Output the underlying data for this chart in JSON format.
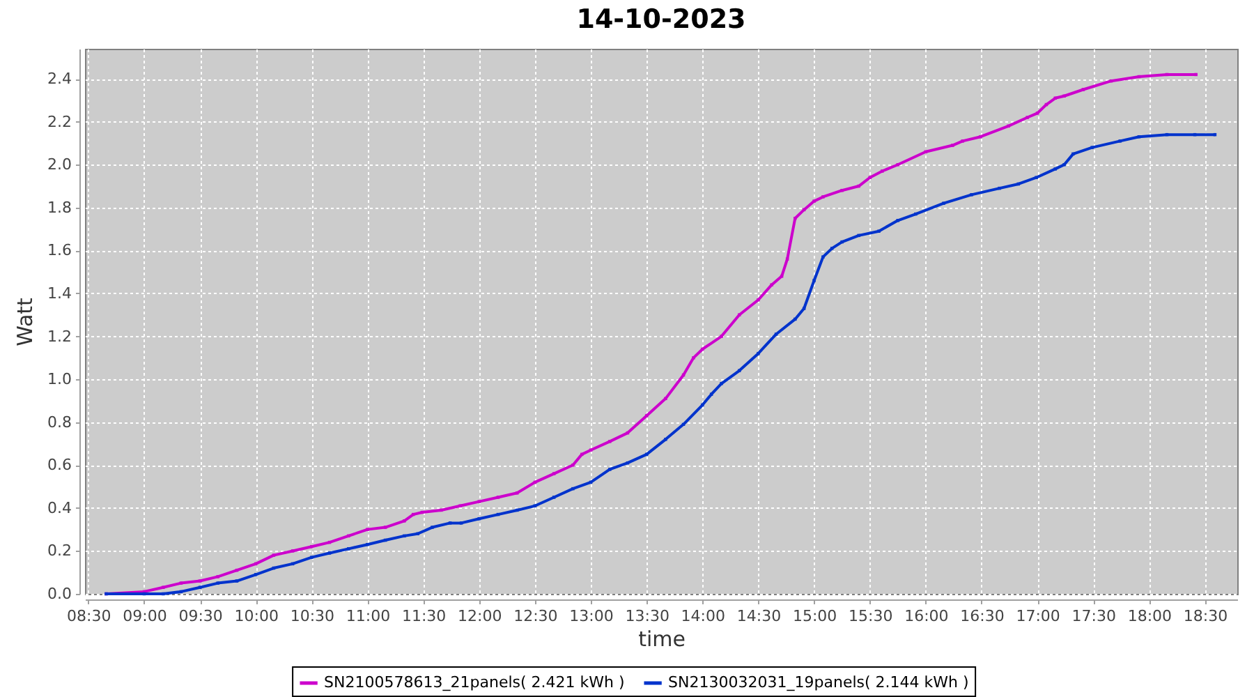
{
  "chart_data": {
    "type": "line",
    "title": "14-10-2023",
    "xlabel": "time",
    "ylabel": "Watt",
    "xlim": [
      8.47,
      18.79
    ],
    "ylim": [
      0,
      2.54
    ],
    "xticks": [
      {
        "value": 8.5,
        "label": "08:30"
      },
      {
        "value": 9,
        "label": "09:00"
      },
      {
        "value": 9.5,
        "label": "09:30"
      },
      {
        "value": 10,
        "label": "10:00"
      },
      {
        "value": 10.5,
        "label": "10:30"
      },
      {
        "value": 11,
        "label": "11:00"
      },
      {
        "value": 11.5,
        "label": "11:30"
      },
      {
        "value": 12,
        "label": "12:00"
      },
      {
        "value": 12.5,
        "label": "12:30"
      },
      {
        "value": 13,
        "label": "13:00"
      },
      {
        "value": 13.5,
        "label": "13:30"
      },
      {
        "value": 14,
        "label": "14:00"
      },
      {
        "value": 14.5,
        "label": "14:30"
      },
      {
        "value": 15,
        "label": "15:00"
      },
      {
        "value": 15.5,
        "label": "15:30"
      },
      {
        "value": 16,
        "label": "16:00"
      },
      {
        "value": 16.5,
        "label": "16:30"
      },
      {
        "value": 17,
        "label": "17:00"
      },
      {
        "value": 17.5,
        "label": "17:30"
      },
      {
        "value": 18,
        "label": "18:00"
      },
      {
        "value": 18.5,
        "label": "18:30"
      }
    ],
    "yticks": [
      {
        "value": 0,
        "label": "0.0"
      },
      0.2,
      0.4,
      0.6,
      0.8,
      {
        "value": 1,
        "label": "1.0"
      },
      1.2,
      1.4,
      1.6,
      1.8,
      {
        "value": 2,
        "label": "2.0"
      },
      2.2,
      2.4
    ],
    "grid": true,
    "legend": "bottom",
    "marker": "square",
    "line_style": "solid",
    "series": [
      {
        "name": "SN2100578613_21panels( 2.421 kWh )",
        "color": "#cc00cc",
        "x": [
          8.66,
          9.0,
          9.17,
          9.33,
          9.5,
          9.66,
          9.83,
          10.0,
          10.16,
          10.33,
          10.5,
          10.66,
          10.83,
          11.0,
          11.16,
          11.33,
          11.41,
          11.49,
          11.66,
          11.83,
          12.0,
          12.17,
          12.34,
          12.5,
          12.67,
          12.84,
          12.92,
          13.0,
          13.17,
          13.33,
          13.5,
          13.67,
          13.83,
          13.92,
          14.0,
          14.17,
          14.33,
          14.5,
          14.62,
          14.71,
          14.76,
          14.83,
          14.91,
          15.0,
          15.08,
          15.25,
          15.4,
          15.5,
          15.61,
          15.75,
          16.0,
          16.24,
          16.33,
          16.49,
          16.74,
          16.91,
          17.0,
          17.08,
          17.16,
          17.24,
          17.41,
          17.66,
          17.91,
          18.16,
          18.42
        ],
        "values": [
          0.0,
          0.01,
          0.03,
          0.05,
          0.06,
          0.08,
          0.11,
          0.14,
          0.18,
          0.2,
          0.22,
          0.24,
          0.27,
          0.3,
          0.31,
          0.34,
          0.37,
          0.38,
          0.39,
          0.41,
          0.43,
          0.45,
          0.47,
          0.52,
          0.56,
          0.6,
          0.65,
          0.67,
          0.71,
          0.75,
          0.83,
          0.91,
          1.02,
          1.1,
          1.14,
          1.2,
          1.3,
          1.37,
          1.44,
          1.48,
          1.56,
          1.75,
          1.79,
          1.83,
          1.85,
          1.88,
          1.9,
          1.94,
          1.97,
          2.0,
          2.06,
          2.09,
          2.11,
          2.13,
          2.18,
          2.22,
          2.24,
          2.28,
          2.31,
          2.32,
          2.35,
          2.39,
          2.41,
          2.42,
          2.42
        ]
      },
      {
        "name": "SN2130032031_19panels( 2.144 kWh )",
        "color": "#0033cc",
        "x": [
          8.66,
          9.0,
          9.17,
          9.33,
          9.5,
          9.66,
          9.83,
          10.0,
          10.16,
          10.33,
          10.5,
          10.66,
          10.83,
          11.0,
          11.16,
          11.33,
          11.45,
          11.58,
          11.74,
          11.84,
          12.0,
          12.17,
          12.34,
          12.5,
          12.67,
          12.84,
          13.0,
          13.17,
          13.33,
          13.5,
          13.67,
          13.83,
          14.0,
          14.08,
          14.17,
          14.33,
          14.5,
          14.66,
          14.83,
          14.91,
          15.0,
          15.08,
          15.16,
          15.25,
          15.4,
          15.58,
          15.75,
          15.91,
          16.16,
          16.41,
          16.66,
          16.83,
          16.99,
          17.16,
          17.24,
          17.32,
          17.49,
          17.74,
          17.91,
          18.16,
          18.41,
          18.59
        ],
        "values": [
          0.0,
          0.0,
          0.0,
          0.01,
          0.03,
          0.05,
          0.06,
          0.09,
          0.12,
          0.14,
          0.17,
          0.19,
          0.21,
          0.23,
          0.25,
          0.27,
          0.28,
          0.31,
          0.33,
          0.33,
          0.35,
          0.37,
          0.39,
          0.41,
          0.45,
          0.49,
          0.52,
          0.58,
          0.61,
          0.65,
          0.72,
          0.79,
          0.88,
          0.93,
          0.98,
          1.04,
          1.12,
          1.21,
          1.28,
          1.33,
          1.46,
          1.57,
          1.61,
          1.64,
          1.67,
          1.69,
          1.74,
          1.77,
          1.82,
          1.86,
          1.89,
          1.91,
          1.94,
          1.98,
          2.0,
          2.05,
          2.08,
          2.11,
          2.13,
          2.14,
          2.14,
          2.14
        ]
      }
    ]
  }
}
